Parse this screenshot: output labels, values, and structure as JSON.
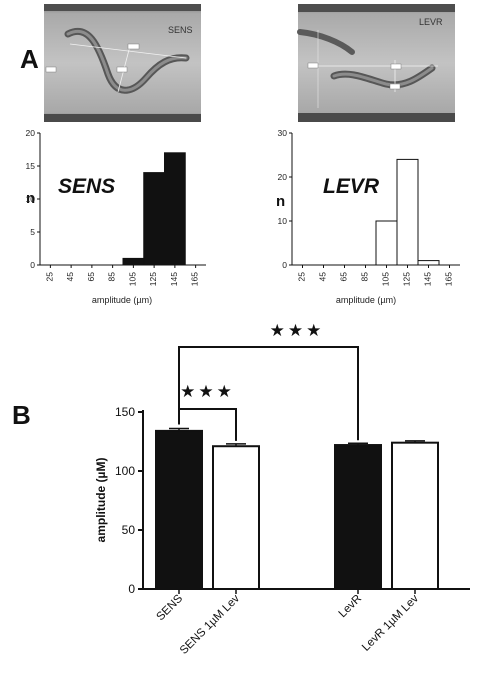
{
  "panel_a_label": "A",
  "panel_b_label": "B",
  "photos": [
    {
      "label": "SENS"
    },
    {
      "label": "LEVR"
    }
  ],
  "chart_data": [
    {
      "type": "bar",
      "overlay_label": "SENS",
      "xlabel": "amplitude (µm)",
      "ylabel": "n",
      "categories": [
        "25",
        "45",
        "65",
        "85",
        "105",
        "125",
        "145",
        "165"
      ],
      "values": [
        0,
        0,
        0,
        0,
        1,
        14,
        17,
        0
      ],
      "ylim": [
        0,
        20
      ],
      "yticks": [
        "0",
        "5",
        "10",
        "15",
        "20"
      ],
      "bar_fill": "#111111"
    },
    {
      "type": "bar",
      "overlay_label": "LEVR",
      "xlabel": "amplitude (µm)",
      "ylabel": "n",
      "categories": [
        "25",
        "45",
        "65",
        "85",
        "105",
        "125",
        "145",
        "165"
      ],
      "values": [
        0,
        0,
        0,
        0,
        10,
        24,
        1,
        0
      ],
      "ylim": [
        0,
        30
      ],
      "yticks": [
        "0",
        "10",
        "20",
        "30"
      ],
      "bar_fill": "#ffffff"
    },
    {
      "type": "bar",
      "ylabel": "amplitude (µM)",
      "categories": [
        "SENS",
        "SENS 1µM Lev",
        "LevR",
        "LevR 1µM Lev"
      ],
      "values": [
        134,
        121,
        122,
        124
      ],
      "errors": [
        2,
        2,
        1.5,
        1.5
      ],
      "fills": [
        "#111111",
        "#ffffff",
        "#111111",
        "#ffffff"
      ],
      "ylim": [
        0,
        150
      ],
      "yticks": [
        "0",
        "50",
        "100",
        "150"
      ],
      "significance": [
        {
          "from": 0,
          "to": 1,
          "label": "★★★"
        },
        {
          "from": 0,
          "to": 2,
          "label": "★★★"
        }
      ]
    }
  ]
}
